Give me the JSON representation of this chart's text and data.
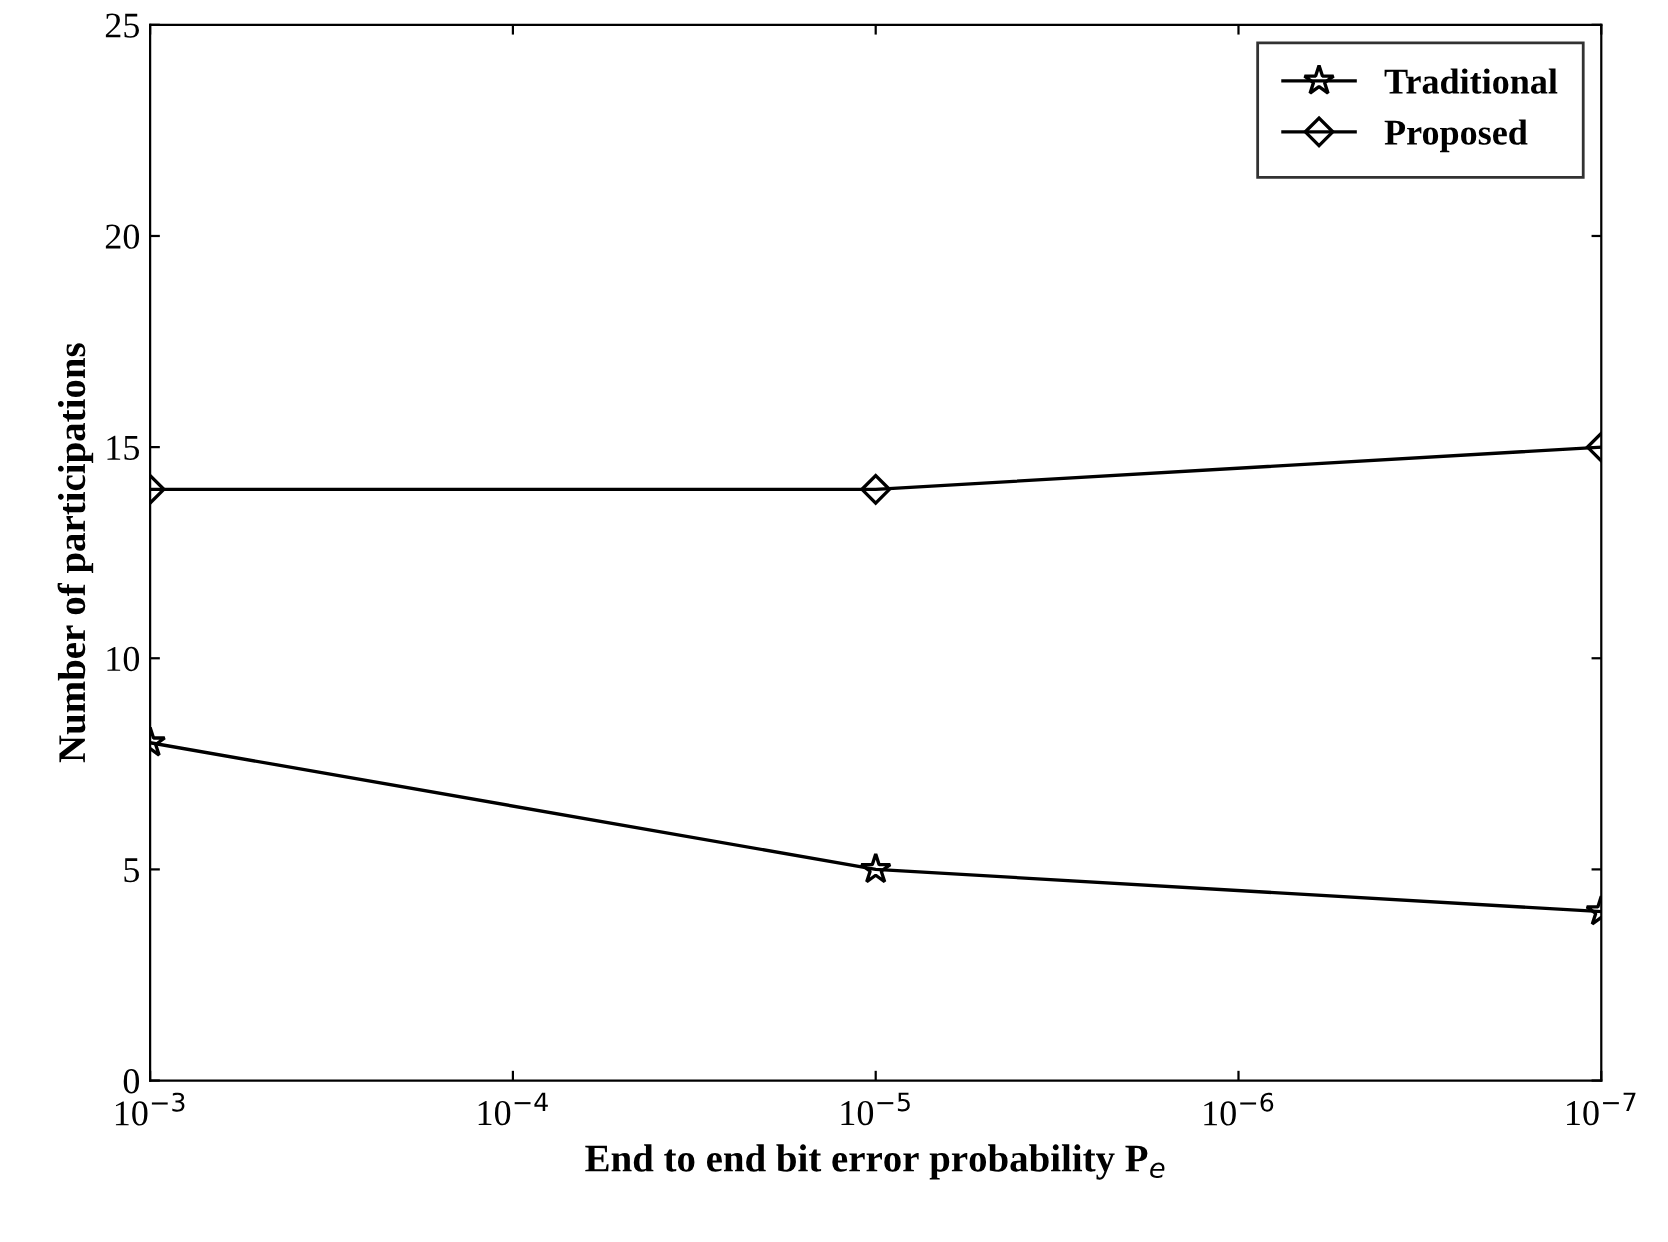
{
  "chart_data": {
    "type": "line",
    "xlabel": "End to end bit error probability P$_{e}$",
    "ylabel": "Number of participations",
    "x": [
      0.001,
      1e-05,
      1e-07
    ],
    "series": [
      {
        "name": "Traditional",
        "color": "#000000",
        "marker": "star",
        "values": [
          8,
          5,
          4
        ]
      },
      {
        "name": "Proposed",
        "color": "#000000",
        "marker": "diamond",
        "values": [
          14,
          14,
          15
        ]
      }
    ],
    "log": "x",
    "xlim": [
      0.001,
      1e-07
    ],
    "xticks": [
      {
        "value": 0.001,
        "label": "10$^{−3}$"
      },
      {
        "value": 0.0001,
        "label": "10$^{−4}$"
      },
      {
        "value": 1e-05,
        "label": "10$^{−5}$"
      },
      {
        "value": 1e-06,
        "label": "10$^{−6}$"
      },
      {
        "value": 1e-07,
        "label": "10$^{−7}$"
      }
    ],
    "ylim": [
      0,
      25
    ],
    "yticks": [
      0,
      5,
      10,
      15,
      20,
      25
    ],
    "legend": "top right",
    "grid": false
  }
}
